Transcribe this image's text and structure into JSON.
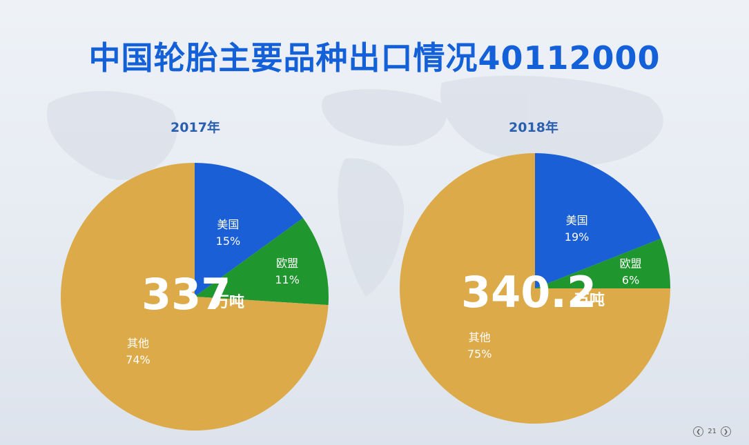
{
  "title": "中国轮胎主要品种出口情况40112000",
  "colors": {
    "title": "#1360d8",
    "usa": "#1a5fd6",
    "eu": "#20962e",
    "other": "#dcaa48",
    "label": "#ffffff"
  },
  "chart_data": [
    {
      "type": "pie",
      "title": "2017年",
      "total": "337",
      "total_unit": "万吨",
      "slices": [
        {
          "label": "美国",
          "value": 15,
          "display": "15%"
        },
        {
          "label": "欧盟",
          "value": 11,
          "display": "11%"
        },
        {
          "label": "其他",
          "value": 74,
          "display": "74%"
        }
      ]
    },
    {
      "type": "pie",
      "title": "2018年",
      "total": "340.2",
      "total_unit": "万吨",
      "slices": [
        {
          "label": "美国",
          "value": 19,
          "display": "19%"
        },
        {
          "label": "欧盟",
          "value": 6,
          "display": "6%"
        },
        {
          "label": "其他",
          "value": 75,
          "display": "75%"
        }
      ]
    }
  ],
  "pager": {
    "prev_icon": "chevron-left-icon",
    "next_icon": "chevron-right-icon",
    "page": "21"
  }
}
